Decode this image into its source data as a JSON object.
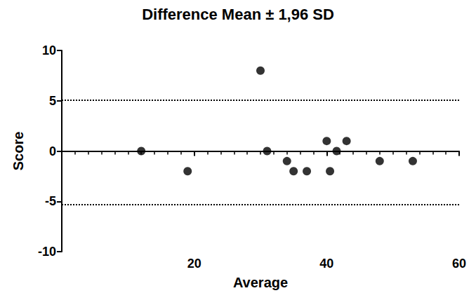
{
  "chart_data": {
    "type": "scatter",
    "title": "Difference Mean ± 1,96 SD",
    "x_label": "Average",
    "y_label": "Score",
    "x": [
      12,
      19,
      30,
      31,
      34,
      35,
      37,
      40,
      41.5,
      40.5,
      43,
      48,
      53
    ],
    "values": [
      0,
      -2,
      8,
      0,
      -1,
      -2,
      -2,
      1,
      0,
      -2,
      1,
      -1,
      -1
    ],
    "color": "#000000",
    "marker": "circle",
    "reference_lines": [
      5.1,
      -5.3
    ],
    "xlim": [
      0,
      60
    ],
    "xticks": [
      20,
      40,
      60
    ],
    "ylim": [
      -10,
      10
    ],
    "yticks": [
      -10,
      -5,
      0,
      5,
      10
    ],
    "grid": false
  }
}
